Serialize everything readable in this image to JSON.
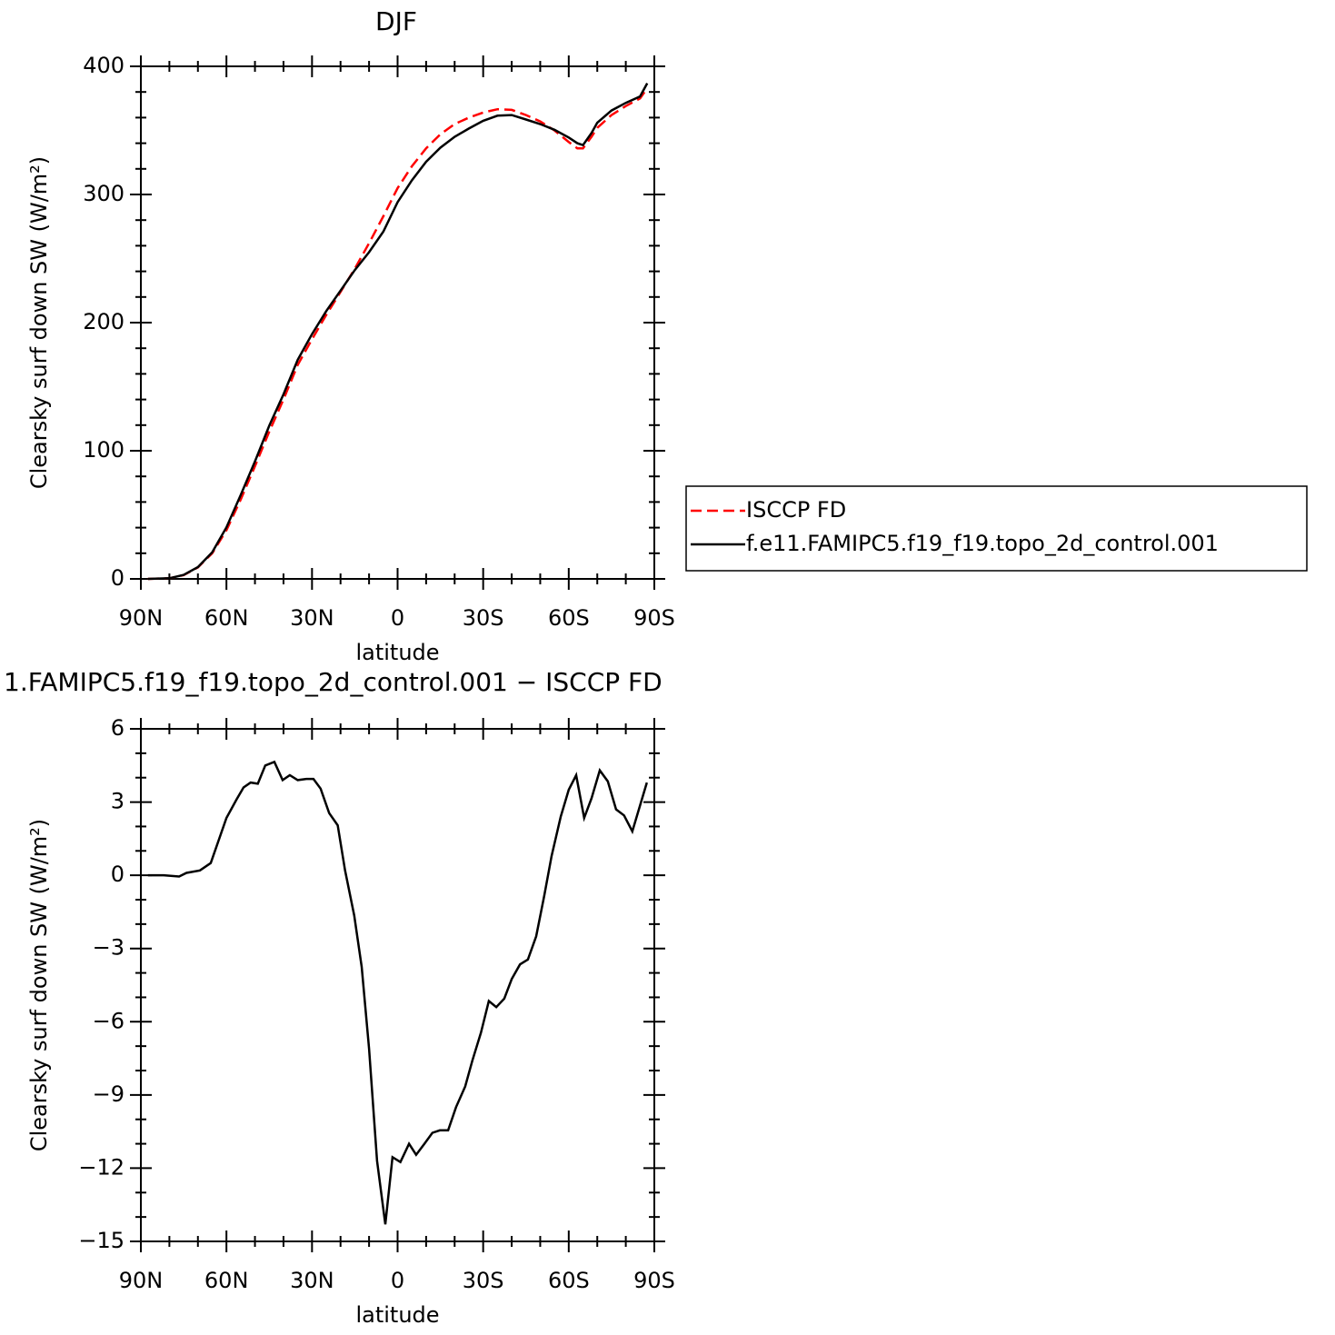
{
  "chart_data": [
    {
      "type": "line",
      "title": "DJF",
      "xlabel": "latitude",
      "ylabel": "Clearsky surf down SW (W/m²)",
      "xlim": [
        90,
        -90
      ],
      "xticks": [
        {
          "value": 90,
          "label": "90N"
        },
        {
          "value": 60,
          "label": "60N"
        },
        {
          "value": 30,
          "label": "30N"
        },
        0,
        {
          "value": -30,
          "label": "30S"
        },
        {
          "value": -60,
          "label": "60S"
        },
        {
          "value": -90,
          "label": "90S"
        }
      ],
      "ylim": [
        0,
        400
      ],
      "yticks": [
        0,
        100,
        200,
        300,
        400
      ],
      "x": [
        87.5,
        80,
        75,
        70,
        65,
        60,
        55,
        50,
        45,
        40,
        35,
        30,
        25,
        20,
        15,
        10,
        5,
        0,
        -5,
        -10,
        -15,
        -20,
        -25,
        -30,
        -35,
        -40,
        -45,
        -50,
        -55,
        -60,
        -63,
        -65,
        -68,
        -70,
        -75,
        -80,
        -85,
        -87.5
      ],
      "series": [
        {
          "name": "ISCCP FD",
          "color": "#ff0000",
          "dashed": true,
          "values": [
            0,
            0.5,
            3,
            9,
            20,
            38,
            62,
            88,
            115,
            140,
            167,
            187,
            206,
            224,
            242,
            262,
            283,
            305,
            322,
            336,
            347,
            355,
            360,
            364,
            366.5,
            366,
            362,
            357,
            350,
            341,
            336,
            336,
            345,
            352,
            362,
            369,
            375,
            383
          ]
        },
        {
          "name": "f.e11.FAMIPC5.f19_f19.topo_2d_control.001",
          "color": "#000000",
          "dashed": false,
          "values": [
            0,
            0.5,
            3.1,
            9.2,
            20.7,
            40.3,
            65.5,
            91.8,
            119.6,
            144,
            171,
            191,
            209,
            225,
            241,
            255,
            271,
            294,
            311,
            325.5,
            336.5,
            345,
            351.5,
            357.5,
            361.5,
            362,
            358.5,
            355,
            350.5,
            344.5,
            340,
            338.5,
            348,
            356,
            365.5,
            371.5,
            376.5,
            386.8
          ]
        }
      ]
    },
    {
      "type": "line",
      "title": "1.FAMIPC5.f19_f19.topo_2d_control.001 − ISCCP FD",
      "xlabel": "latitude",
      "ylabel": "Clearsky surf down SW (W/m²)",
      "xlim": [
        90,
        -90
      ],
      "xticks": [
        {
          "value": 90,
          "label": "90N"
        },
        {
          "value": 60,
          "label": "60N"
        },
        {
          "value": 30,
          "label": "30N"
        },
        0,
        {
          "value": -30,
          "label": "30S"
        },
        {
          "value": -60,
          "label": "60S"
        },
        {
          "value": -90,
          "label": "90S"
        }
      ],
      "ylim": [
        -15,
        6
      ],
      "yticks": [
        {
          "value": -15,
          "label": "−15"
        },
        {
          "value": -12,
          "label": "−12"
        },
        {
          "value": -9,
          "label": "−9"
        },
        {
          "value": -6,
          "label": "−6"
        },
        {
          "value": -3,
          "label": "−3"
        },
        0,
        3,
        6
      ],
      "color": "#000000",
      "x": [
        87.5,
        82,
        76.6,
        74,
        69.3,
        65.5,
        60,
        56.5,
        54,
        51.5,
        49,
        46.4,
        43.2,
        40.3,
        37.8,
        35,
        32,
        29.5,
        27,
        24,
        21,
        18.4,
        15.2,
        12.6,
        10,
        7.2,
        4.3,
        1.8,
        -1,
        -4,
        -6.5,
        -9.4,
        -12.2,
        -14.8,
        -17.7,
        -20.5,
        -23.7,
        -26.2,
        -29.2,
        -32,
        -34.6,
        -37.4,
        -40,
        -42.9,
        -45.7,
        -48.6,
        -51.4,
        -54,
        -57.2,
        -60,
        -62.6,
        -65.4,
        -68,
        -70.9,
        -73.7,
        -76.6,
        -79.4,
        -82.3,
        -87.4
      ],
      "values": [
        0,
        0,
        -0.05,
        0.1,
        0.2,
        0.5,
        2.35,
        3.1,
        3.6,
        3.8,
        3.75,
        4.5,
        4.65,
        3.9,
        4.1,
        3.9,
        3.95,
        3.95,
        3.55,
        2.55,
        2.05,
        0.2,
        -1.65,
        -3.75,
        -7.1,
        -11.7,
        -14.3,
        -11.55,
        -11.75,
        -11,
        -11.45,
        -11,
        -10.55,
        -10.45,
        -10.45,
        -9.5,
        -8.65,
        -7.6,
        -6.45,
        -5.15,
        -5.4,
        -5.05,
        -4.25,
        -3.65,
        -3.45,
        -2.5,
        -0.85,
        0.8,
        2.4,
        3.5,
        4.1,
        2.35,
        3.15,
        4.3,
        3.85,
        2.7,
        2.45,
        1.8,
        3.8
      ]
    }
  ]
}
